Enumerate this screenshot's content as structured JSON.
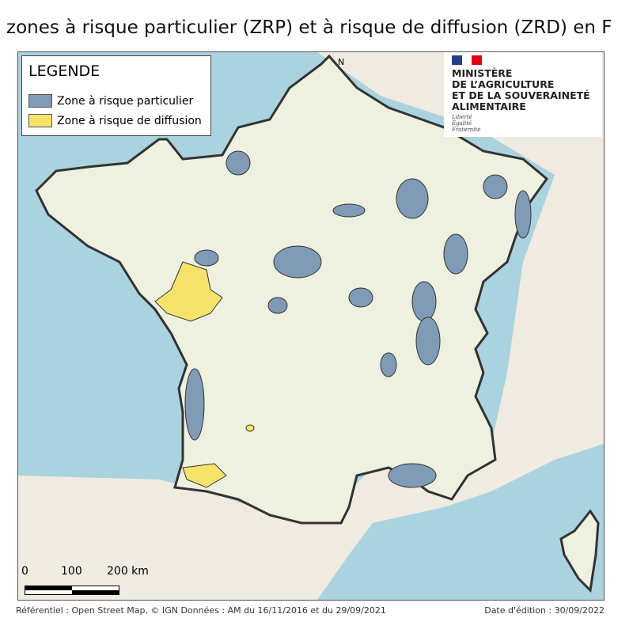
{
  "title": "zones à risque particulier (ZRP) et à risque de diffusion (ZRD) en F",
  "legend": {
    "heading": "LEGENDE",
    "items": [
      {
        "label": "Zone à risque particulier",
        "color": "#7f9bb5"
      },
      {
        "label": "Zone à risque de diffusion",
        "color": "#f5e36a"
      }
    ]
  },
  "logo": {
    "lines": [
      "MINISTÈRE",
      "DE L’AGRICULTURE",
      "ET DE LA SOUVERAINETÉ",
      "ALIMENTAIRE"
    ],
    "motto": [
      "Liberté",
      "Égalité",
      "Fraternité"
    ]
  },
  "north": "N",
  "scale": {
    "labels": [
      "0",
      "100",
      "200 km"
    ]
  },
  "footer": {
    "source": "Référentiel : Open Street Map, © IGN  Données : AM du 16/11/2016 et du 29/09/2021",
    "date": "Date d'édition : 30/09/2022"
  },
  "colors": {
    "sea": "#aad3df",
    "land": "#eef0e0",
    "zrp": "#7f9bb5",
    "zrd": "#f5e36a",
    "border": "#333333"
  }
}
